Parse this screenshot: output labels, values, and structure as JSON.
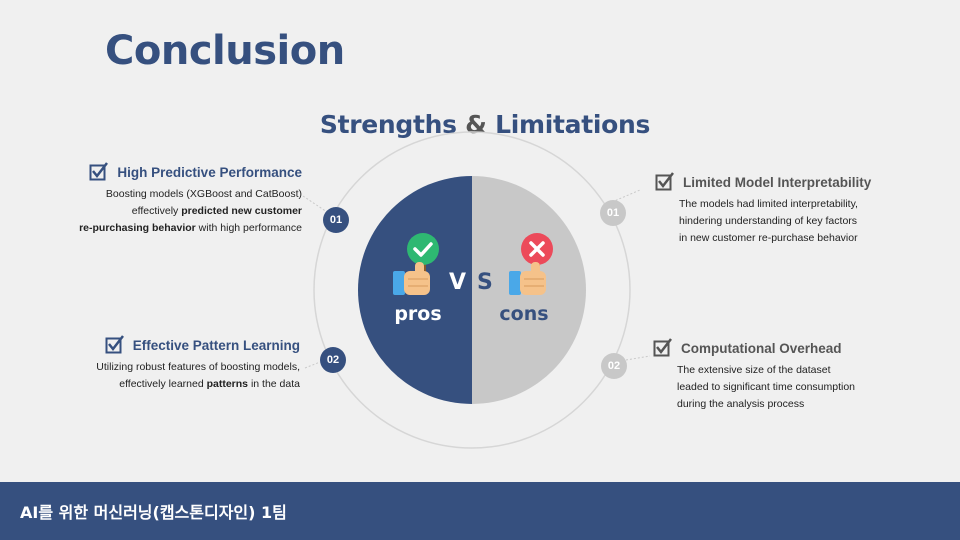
{
  "slide": {
    "title": "Conclusion",
    "subtitle_pre": "Strengths ",
    "subtitle_amp": "&",
    "subtitle_post": " Limitations",
    "vs_left": "V",
    "vs_right": "S",
    "pros_label": "pros",
    "cons_label": "cons",
    "colors": {
      "primary": "#36507f",
      "cons_gray": "#c8c8c8",
      "check_green": "#2eb872",
      "cross_red": "#ec4a5a",
      "background": "#f0f0f0"
    },
    "icons": [
      "checkbox-check-icon",
      "thumbs-up-icon",
      "check-sign-icon",
      "x-sign-icon"
    ]
  },
  "strengths": [
    {
      "num": "01",
      "heading": "High Predictive Performance",
      "line1": "Boosting models (XGBoost and CatBoost)",
      "line2_pre": "effectively ",
      "line2_bold": "predicted new customer",
      "line3_bold": "re-purchasing behavior",
      "line3_post": " with high performance"
    },
    {
      "num": "02",
      "heading": "Effective Pattern Learning",
      "line1": "Utilizing robust features of boosting models,",
      "line2_pre": "effectively learned ",
      "line2_bold": "patterns",
      "line2_post": " in the data"
    }
  ],
  "limitations": [
    {
      "num": "01",
      "heading": "Limited Model Interpretability",
      "line1": "The models had limited interpretability,",
      "line2": "hindering understanding of key factors",
      "line3": "in new customer re-purchase behavior"
    },
    {
      "num": "02",
      "heading": "Computational Overhead",
      "line1": "The extensive size of the dataset",
      "line2": "leaded to significant time consumption",
      "line3": "during the analysis process"
    }
  ],
  "footer": {
    "team": "AI를 위한 머신러닝(캡스톤디자인) 1팀"
  }
}
